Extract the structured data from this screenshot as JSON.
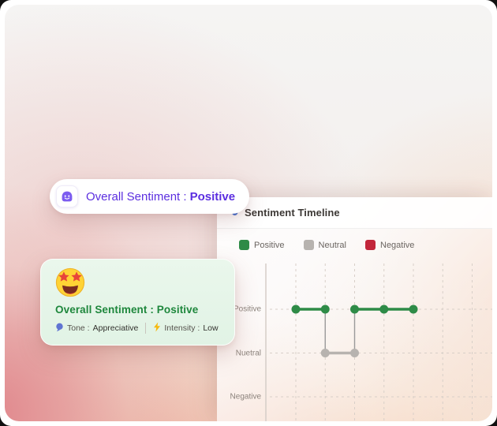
{
  "overlay_pill": {
    "icon": "sentiment-blob-icon",
    "label": "Overall Sentiment :",
    "value": "Positive",
    "accent_color": "#5b2ee0"
  },
  "sentiment_card": {
    "emoji": "star-struck",
    "title": "Overall Sentiment : Positive",
    "title_color": "#1e873c",
    "tone_label": "Tone :",
    "tone_value": "Appreciative",
    "intensity_label": "Intensity :",
    "intensity_value": "Low"
  },
  "chart_panel": {
    "title": "Sentiment Timeline",
    "title_icon": "theater-masks-icon"
  },
  "chart_data": {
    "type": "line",
    "title": "Sentiment Timeline",
    "legend": [
      {
        "label": "Positive",
        "color": "#2e8b47"
      },
      {
        "label": "Neutral",
        "color": "#b7b3af"
      },
      {
        "label": "Negative",
        "color": "#c2263a"
      }
    ],
    "y_levels": [
      "Positive",
      "Nuetral",
      "Negative"
    ],
    "points": [
      {
        "x": 1,
        "level": "Positive"
      },
      {
        "x": 2,
        "level": "Positive"
      },
      {
        "x": 2,
        "level": "Nuetral"
      },
      {
        "x": 3,
        "level": "Nuetral"
      },
      {
        "x": 3,
        "level": "Positive"
      },
      {
        "x": 4,
        "level": "Positive"
      },
      {
        "x": 5,
        "level": "Positive"
      }
    ],
    "x_gridline_count": 7,
    "grid": "dashed",
    "series_colors": {
      "Positive": "#2e8b47",
      "Nuetral": "#b7b3af",
      "Negative": "#c2263a"
    },
    "connector_color": "#9a9a9a",
    "gridline_color": "#d8cfc8",
    "axis_color": "#d5cdc7"
  }
}
